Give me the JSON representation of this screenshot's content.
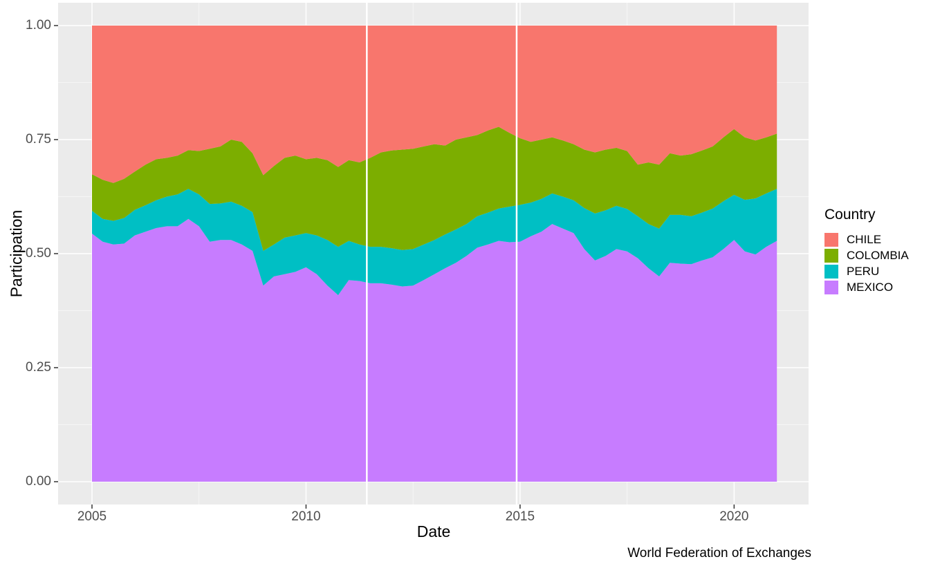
{
  "page": {
    "background": "#FFFFFF",
    "panel_background": "#EBEBEB"
  },
  "chart_data": {
    "type": "area",
    "stacked": true,
    "position": "fill",
    "xlabel": "Date",
    "ylabel": "Participation",
    "caption": "World Federation of Exchanges",
    "xlim": [
      2005,
      2021
    ],
    "ylim": [
      0,
      1
    ],
    "x_ticks": [
      2005,
      2010,
      2015,
      2020
    ],
    "x_tick_labels": [
      "2005",
      "2010",
      "2015",
      "2020"
    ],
    "y_ticks": [
      0,
      0.25,
      0.5,
      0.75,
      1
    ],
    "y_tick_labels": [
      "0.00",
      "0.25",
      "0.50",
      "0.75",
      "1.00"
    ],
    "x_minor_ticks": [
      2007.5,
      2012.5,
      2017.5
    ],
    "y_minor_ticks": [
      0.125,
      0.375,
      0.625,
      0.875
    ],
    "grid": true,
    "gridline_color": "#FFFFFF",
    "tick_label_color": "#4D4D4D",
    "gap_lines": [
      2011.42,
      2014.92
    ],
    "x": [
      2005,
      2005.25,
      2005.5,
      2005.75,
      2006,
      2006.25,
      2006.5,
      2006.75,
      2007,
      2007.25,
      2007.5,
      2007.75,
      2008,
      2008.25,
      2008.5,
      2008.75,
      2009,
      2009.25,
      2009.5,
      2009.75,
      2010,
      2010.25,
      2010.5,
      2010.75,
      2011,
      2011.25,
      2011.5,
      2011.75,
      2012,
      2012.25,
      2012.5,
      2012.75,
      2013,
      2013.25,
      2013.5,
      2013.75,
      2014,
      2014.25,
      2014.5,
      2014.75,
      2015,
      2015.25,
      2015.5,
      2015.75,
      2016,
      2016.25,
      2016.5,
      2016.75,
      2017,
      2017.25,
      2017.5,
      2017.75,
      2018,
      2018.25,
      2018.5,
      2018.75,
      2019,
      2019.25,
      2019.5,
      2019.75,
      2020,
      2020.25,
      2020.5,
      2020.75,
      2021
    ],
    "series": [
      {
        "name": "MEXICO",
        "color": "#C77CFF",
        "values": [
          0.544,
          0.526,
          0.52,
          0.522,
          0.54,
          0.548,
          0.556,
          0.56,
          0.56,
          0.576,
          0.56,
          0.526,
          0.53,
          0.53,
          0.52,
          0.506,
          0.43,
          0.45,
          0.455,
          0.46,
          0.47,
          0.455,
          0.43,
          0.409,
          0.442,
          0.44,
          0.435,
          0.435,
          0.432,
          0.428,
          0.43,
          0.442,
          0.455,
          0.468,
          0.48,
          0.495,
          0.513,
          0.52,
          0.528,
          0.525,
          0.526,
          0.538,
          0.548,
          0.565,
          0.555,
          0.545,
          0.51,
          0.485,
          0.495,
          0.51,
          0.505,
          0.49,
          0.468,
          0.45,
          0.48,
          0.478,
          0.477,
          0.485,
          0.492,
          0.51,
          0.53,
          0.505,
          0.498,
          0.515,
          0.528
        ]
      },
      {
        "name": "PERU",
        "color": "#00BFC4",
        "values": [
          0.05,
          0.05,
          0.052,
          0.056,
          0.056,
          0.058,
          0.061,
          0.065,
          0.07,
          0.066,
          0.07,
          0.083,
          0.08,
          0.084,
          0.085,
          0.085,
          0.076,
          0.07,
          0.08,
          0.08,
          0.075,
          0.085,
          0.1,
          0.106,
          0.086,
          0.08,
          0.08,
          0.08,
          0.08,
          0.08,
          0.08,
          0.078,
          0.075,
          0.074,
          0.073,
          0.07,
          0.069,
          0.07,
          0.071,
          0.078,
          0.081,
          0.074,
          0.072,
          0.067,
          0.07,
          0.072,
          0.09,
          0.103,
          0.1,
          0.095,
          0.093,
          0.092,
          0.097,
          0.105,
          0.105,
          0.107,
          0.105,
          0.105,
          0.107,
          0.105,
          0.099,
          0.113,
          0.123,
          0.117,
          0.114
        ]
      },
      {
        "name": "COLOMBIA",
        "color": "#7CAE00",
        "values": [
          0.08,
          0.086,
          0.083,
          0.086,
          0.084,
          0.089,
          0.09,
          0.085,
          0.085,
          0.085,
          0.095,
          0.121,
          0.125,
          0.136,
          0.14,
          0.129,
          0.166,
          0.172,
          0.175,
          0.175,
          0.162,
          0.17,
          0.175,
          0.175,
          0.177,
          0.18,
          0.195,
          0.207,
          0.214,
          0.22,
          0.22,
          0.215,
          0.21,
          0.195,
          0.197,
          0.19,
          0.178,
          0.18,
          0.179,
          0.162,
          0.146,
          0.133,
          0.13,
          0.123,
          0.123,
          0.123,
          0.128,
          0.134,
          0.133,
          0.127,
          0.127,
          0.113,
          0.135,
          0.14,
          0.135,
          0.13,
          0.136,
          0.136,
          0.136,
          0.14,
          0.144,
          0.137,
          0.127,
          0.123,
          0.121
        ]
      },
      {
        "name": "CHILE",
        "color": "#F8766D",
        "values": [
          0.326,
          0.338,
          0.345,
          0.336,
          0.32,
          0.305,
          0.293,
          0.29,
          0.285,
          0.273,
          0.275,
          0.27,
          0.265,
          0.25,
          0.255,
          0.28,
          0.328,
          0.308,
          0.29,
          0.285,
          0.293,
          0.29,
          0.295,
          0.31,
          0.295,
          0.3,
          0.29,
          0.278,
          0.274,
          0.272,
          0.27,
          0.265,
          0.26,
          0.263,
          0.25,
          0.245,
          0.24,
          0.23,
          0.222,
          0.235,
          0.247,
          0.255,
          0.25,
          0.245,
          0.252,
          0.26,
          0.272,
          0.278,
          0.272,
          0.268,
          0.275,
          0.305,
          0.3,
          0.305,
          0.28,
          0.285,
          0.282,
          0.274,
          0.265,
          0.245,
          0.227,
          0.245,
          0.252,
          0.245,
          0.237
        ]
      }
    ],
    "legend": {
      "title": "Country",
      "position": "right",
      "items": [
        {
          "label": "CHILE",
          "color": "#F8766D"
        },
        {
          "label": "COLOMBIA",
          "color": "#7CAE00"
        },
        {
          "label": "PERU",
          "color": "#00BFC4"
        },
        {
          "label": "MEXICO",
          "color": "#C77CFF"
        }
      ]
    }
  }
}
